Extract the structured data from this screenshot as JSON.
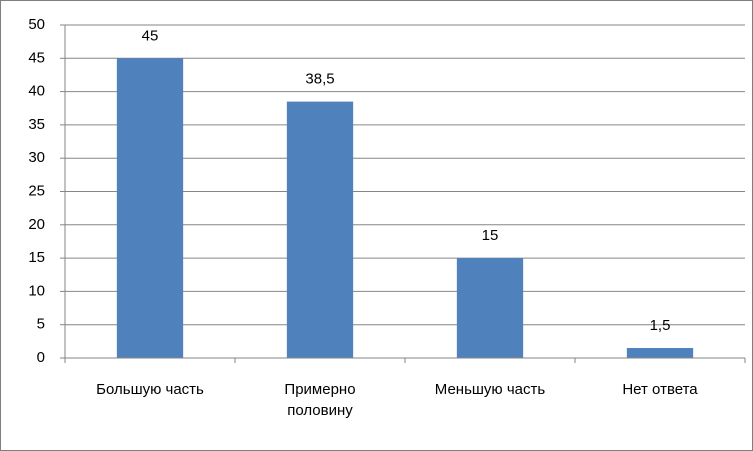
{
  "chart_data": {
    "type": "bar",
    "categories": [
      "Большую часть",
      "Примерно половину",
      "Меньшую часть",
      "Нет ответа"
    ],
    "values": [
      45,
      38.5,
      15,
      1.5
    ],
    "value_labels": [
      "45",
      "38,5",
      "15",
      "1,5"
    ],
    "color": "#4f81bd",
    "ylim": [
      0,
      50
    ],
    "yticks": [
      0,
      5,
      10,
      15,
      20,
      25,
      30,
      35,
      40,
      45,
      50
    ],
    "grid": true
  }
}
